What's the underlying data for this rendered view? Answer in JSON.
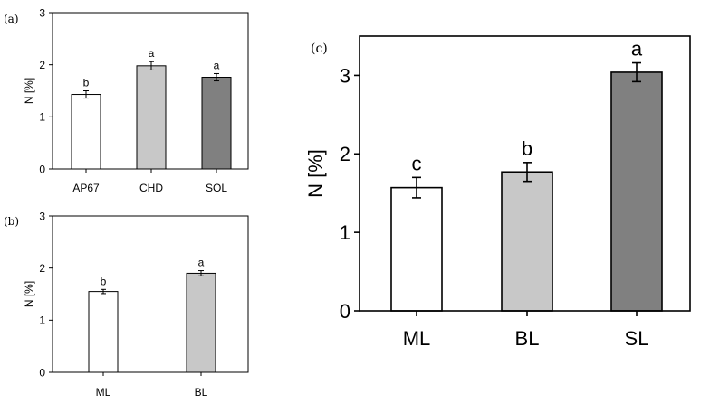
{
  "chart_data": [
    {
      "panel_label": "(a)",
      "type": "bar",
      "categories": [
        "AP67",
        "CHD",
        "SOL"
      ],
      "values": [
        1.43,
        1.98,
        1.76
      ],
      "errors": [
        0.07,
        0.08,
        0.07
      ],
      "letters": [
        "b",
        "a",
        "a"
      ],
      "colors": [
        "#ffffff",
        "#c8c8c8",
        "#808080"
      ],
      "ylabel": "N [%]",
      "xlabel": "",
      "ylim": [
        0,
        3
      ],
      "yticks": [
        0,
        1,
        2,
        3
      ],
      "ytick_labels": [
        "0",
        "1",
        "2",
        "3"
      ]
    },
    {
      "panel_label": "(b)",
      "type": "bar",
      "categories": [
        "ML",
        "BL"
      ],
      "values": [
        1.55,
        1.9
      ],
      "errors": [
        0.04,
        0.05
      ],
      "letters": [
        "b",
        "a"
      ],
      "colors": [
        "#ffffff",
        "#c8c8c8"
      ],
      "ylabel": "N [%]",
      "xlabel": "",
      "ylim": [
        0,
        3
      ],
      "yticks": [
        0,
        1,
        2,
        3
      ],
      "ytick_labels": [
        "0",
        "1",
        "2",
        "3"
      ]
    },
    {
      "panel_label": "(c)",
      "type": "bar",
      "categories": [
        "ML",
        "BL",
        "SL"
      ],
      "values": [
        1.57,
        1.77,
        3.04
      ],
      "errors": [
        0.13,
        0.12,
        0.12
      ],
      "letters": [
        "c",
        "b",
        "a"
      ],
      "colors": [
        "#ffffff",
        "#c8c8c8",
        "#808080"
      ],
      "ylabel": "N [%]",
      "xlabel": "",
      "ylim": [
        0,
        3.5
      ],
      "yticks": [
        0,
        1,
        2,
        3
      ],
      "ytick_labels": [
        "0",
        "1",
        "2",
        "3"
      ]
    }
  ]
}
